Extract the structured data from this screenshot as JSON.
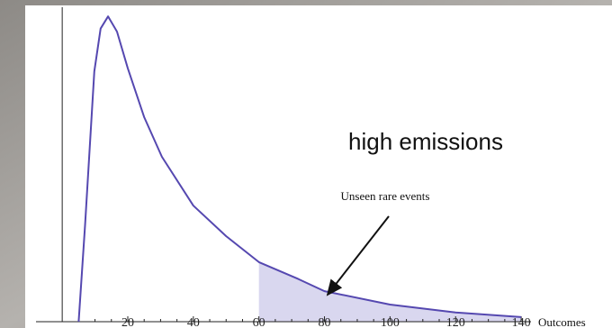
{
  "chart_data": {
    "type": "line",
    "annotations": [
      "high emissions",
      "Unseen rare events"
    ],
    "x_label": "Outcomes",
    "x": [
      5,
      7,
      9.8,
      11.7,
      14,
      16.7,
      20,
      25,
      30.4,
      40,
      50,
      60,
      72,
      80,
      100,
      120,
      140
    ],
    "series": [
      {
        "color": "#5548b0",
        "values": [
          0,
          32,
          82,
          96,
          100,
          95,
          83,
          67,
          54,
          38,
          28,
          19.5,
          14,
          10,
          5.6,
          3,
          1.5
        ]
      }
    ],
    "shaded_range": [
      60,
      140
    ],
    "shade_color": "#d9d7ef",
    "xlim": [
      -8,
      143
    ],
    "ylim": [
      0,
      103
    ],
    "xticks": [
      20,
      40,
      60,
      80,
      100,
      120,
      140
    ],
    "xminorticks": [
      5,
      10,
      15,
      25,
      30,
      35,
      45,
      50,
      55,
      65,
      70,
      75,
      85,
      90,
      95,
      105,
      110,
      115,
      125,
      130,
      135
    ]
  }
}
